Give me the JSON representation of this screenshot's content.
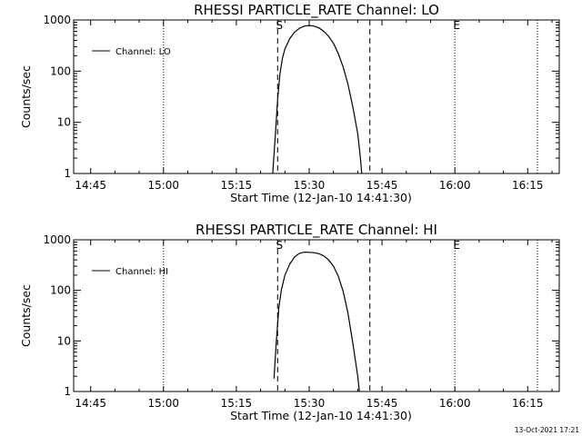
{
  "chart_data": [
    {
      "type": "line",
      "title": "RHESSI PARTICLE_RATE Channel: LO",
      "xlabel": "Start Time (12-Jan-10 14:41:30)",
      "ylabel": "Counts/sec",
      "y_scale": "log",
      "ylim": [
        1,
        1000
      ],
      "x_range": [
        "14:41:30",
        "16:21:30"
      ],
      "x_ticks": [
        "14:45",
        "15:00",
        "15:15",
        "15:30",
        "15:45",
        "16:00",
        "16:15"
      ],
      "y_ticks": [
        "1",
        "10",
        "100",
        "1000"
      ],
      "legend": {
        "label": "Channel: LO",
        "placement": "top-left"
      },
      "markers": [
        {
          "label": "S",
          "time": "15:23:30",
          "style": "dashed"
        },
        {
          "label": "",
          "time": "15:42:30",
          "style": "dashed"
        },
        {
          "label": "E",
          "time": "16:00:00",
          "style": "dotted"
        }
      ],
      "dotted_lines": [
        "15:00:00",
        "16:17:00"
      ],
      "series": [
        {
          "x": [
            "15:22:30",
            "15:23:00",
            "15:23:30",
            "15:24:00",
            "15:24:30",
            "15:25:00",
            "15:26:00",
            "15:27:00",
            "15:28:00",
            "15:29:00",
            "15:30:00",
            "15:31:00",
            "15:32:00",
            "15:33:00",
            "15:34:00",
            "15:35:00",
            "15:36:00",
            "15:37:00",
            "15:38:00",
            "15:39:00",
            "15:40:00",
            "15:40:30",
            "15:40:50"
          ],
          "values": [
            1.0,
            5,
            28,
            90,
            180,
            270,
            430,
            580,
            690,
            760,
            780,
            760,
            700,
            600,
            480,
            350,
            220,
            120,
            55,
            20,
            6,
            2.2,
            1.0
          ]
        }
      ]
    },
    {
      "type": "line",
      "title": "RHESSI PARTICLE_RATE Channel: HI",
      "xlabel": "Start Time (12-Jan-10 14:41:30)",
      "ylabel": "Counts/sec",
      "y_scale": "log",
      "ylim": [
        1,
        1000
      ],
      "x_range": [
        "14:41:30",
        "16:21:30"
      ],
      "x_ticks": [
        "14:45",
        "15:00",
        "15:15",
        "15:30",
        "15:45",
        "16:00",
        "16:15"
      ],
      "y_ticks": [
        "1",
        "10",
        "100",
        "1000"
      ],
      "legend": {
        "label": "Channel: HI",
        "placement": "top-left"
      },
      "markers": [
        {
          "label": "S",
          "time": "15:23:30",
          "style": "dashed"
        },
        {
          "label": "",
          "time": "15:42:30",
          "style": "dashed"
        },
        {
          "label": "E",
          "time": "16:00:00",
          "style": "dotted"
        }
      ],
      "dotted_lines": [
        "15:00:00",
        "16:17:00"
      ],
      "series": [
        {
          "x": [
            "15:22:45",
            "15:23:15",
            "15:23:45",
            "15:24:15",
            "15:25:00",
            "15:26:00",
            "15:27:00",
            "15:28:00",
            "15:29:00",
            "15:30:00",
            "15:31:00",
            "15:32:00",
            "15:33:00",
            "15:34:00",
            "15:35:00",
            "15:36:00",
            "15:37:00",
            "15:38:00",
            "15:39:00",
            "15:40:00",
            "15:40:20"
          ],
          "values": [
            1.8,
            10,
            45,
            100,
            200,
            330,
            460,
            540,
            570,
            565,
            555,
            530,
            480,
            400,
            300,
            190,
            95,
            35,
            9,
            2.0,
            1.0
          ]
        }
      ]
    }
  ],
  "timestamp": "13-Oct-2021 17:21"
}
